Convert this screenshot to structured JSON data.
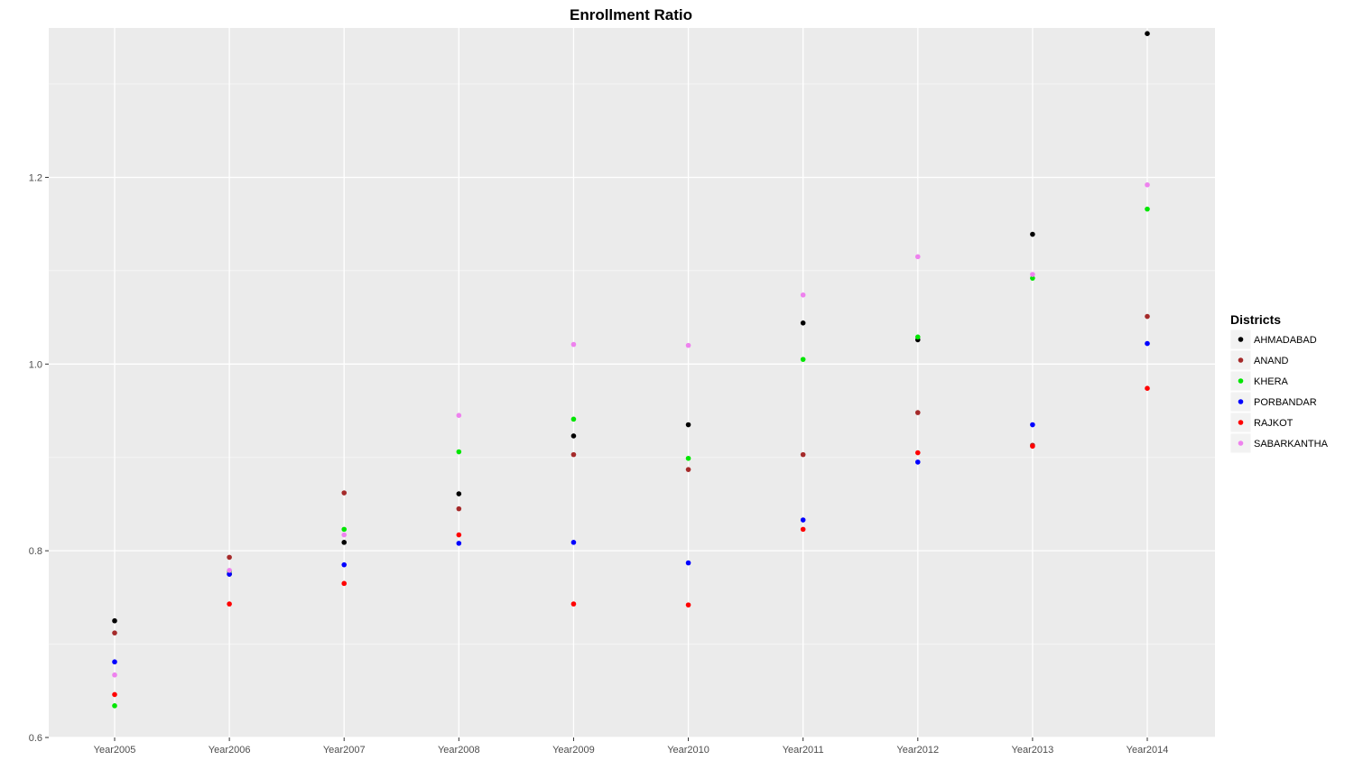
{
  "chart_data": {
    "type": "scatter",
    "title": "Enrollment Ratio",
    "xlabel": "",
    "ylabel": "",
    "categories": [
      "Year2005",
      "Year2006",
      "Year2007",
      "Year2008",
      "Year2009",
      "Year2010",
      "Year2011",
      "Year2012",
      "Year2013",
      "Year2014"
    ],
    "ylim": [
      0.6,
      1.36
    ],
    "yticks": [
      0.6,
      0.8,
      1.0,
      1.2
    ],
    "yticks_labels": [
      "0.6",
      "0.8",
      "1.0",
      "1.2"
    ],
    "grid": true,
    "legend": {
      "title": "Districts",
      "position": "right"
    },
    "series": [
      {
        "name": "AHMADABAD",
        "color": "#000000",
        "values": [
          0.725,
          0.775,
          0.809,
          0.861,
          0.923,
          0.935,
          1.044,
          1.026,
          1.139,
          1.354
        ]
      },
      {
        "name": "ANAND",
        "color": "#a52a2a",
        "values": [
          0.712,
          0.793,
          0.862,
          0.845,
          0.903,
          0.887,
          0.903,
          0.948,
          0.913,
          1.051
        ]
      },
      {
        "name": "KHERA",
        "color": "#00e600",
        "values": [
          0.634,
          0.778,
          0.823,
          0.906,
          0.941,
          0.899,
          1.005,
          1.029,
          1.092,
          1.166
        ]
      },
      {
        "name": "PORBANDAR",
        "color": "#0000ff",
        "values": [
          0.681,
          0.775,
          0.785,
          0.808,
          0.809,
          0.787,
          0.833,
          0.895,
          0.935,
          1.022
        ]
      },
      {
        "name": "RAJKOT",
        "color": "#ff0000",
        "values": [
          0.646,
          0.743,
          0.765,
          0.817,
          0.743,
          0.742,
          0.823,
          0.905,
          0.912,
          0.974
        ]
      },
      {
        "name": "SABARKANTHA",
        "color": "#ee82ee",
        "values": [
          0.667,
          0.779,
          0.817,
          0.945,
          1.021,
          1.02,
          1.074,
          1.115,
          1.096,
          1.192
        ]
      }
    ]
  }
}
